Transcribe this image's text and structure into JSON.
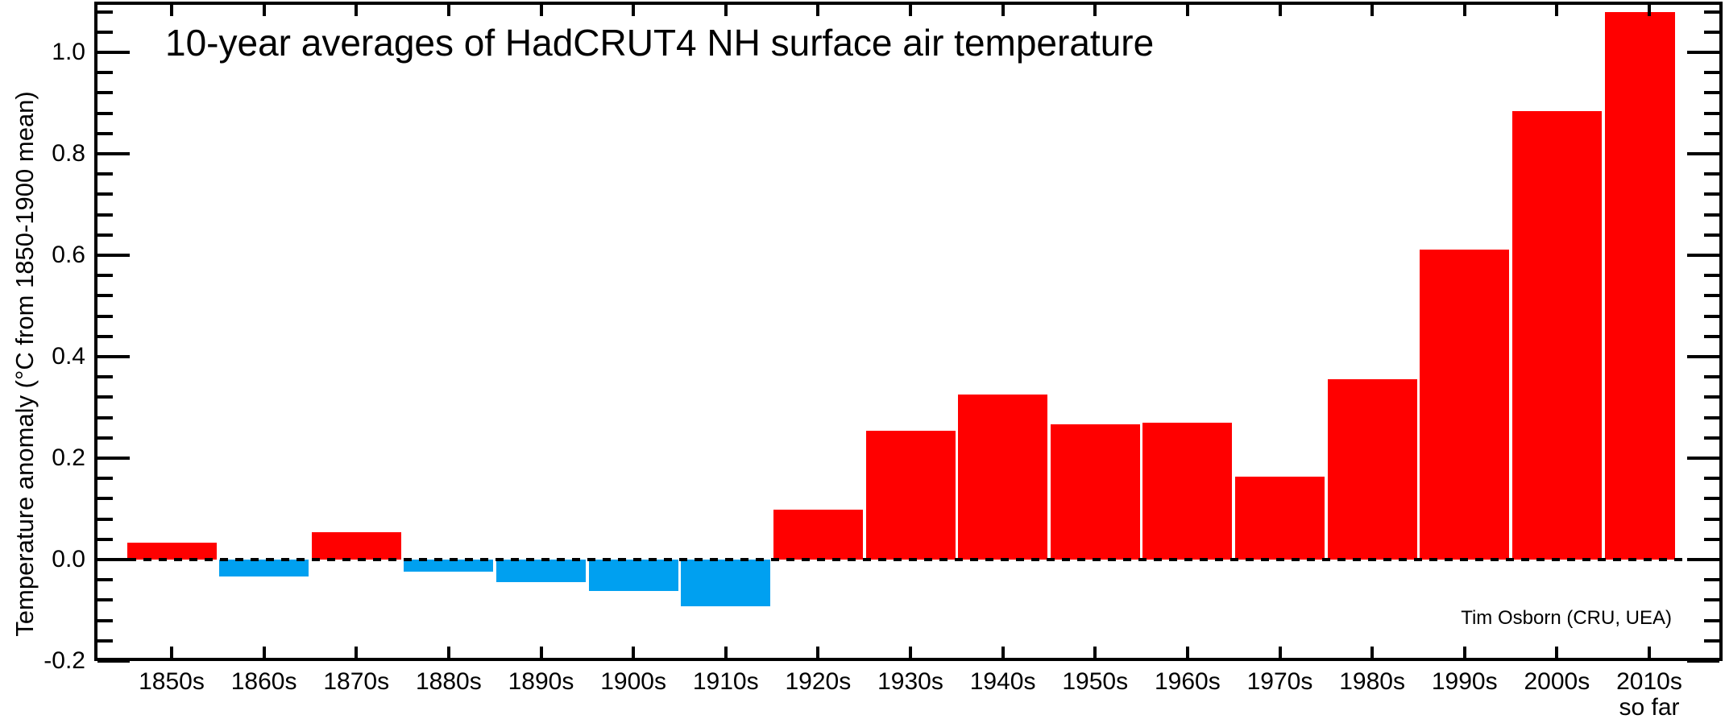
{
  "chart_data": {
    "type": "bar",
    "title": "10-year averages of HadCRUT4 NH surface air temperature",
    "ylabel": "Temperature anomaly (°C from 1850-1900 mean)",
    "xlabel": "",
    "attribution": "Tim Osborn (CRU, UEA)",
    "categories": [
      "1850s",
      "1860s",
      "1870s",
      "1880s",
      "1890s",
      "1900s",
      "1910s",
      "1920s",
      "1930s",
      "1940s",
      "1950s",
      "1960s",
      "1970s",
      "1980s",
      "1990s",
      "2000s",
      "2010s"
    ],
    "last_category_note": "so far",
    "values": [
      0.033,
      -0.033,
      0.054,
      -0.024,
      -0.044,
      -0.062,
      -0.092,
      0.098,
      0.254,
      0.325,
      0.267,
      0.27,
      0.163,
      0.356,
      0.611,
      0.884,
      1.079
    ],
    "ylim": [
      -0.2,
      1.1
    ],
    "ytick_major_interval": 0.2,
    "ytick_minor_interval": 0.04,
    "ytick_labels": [
      "-0.2",
      "0.0",
      "0.2",
      "0.4",
      "0.6",
      "0.8",
      "1.0"
    ],
    "ytick_values": [
      -0.2,
      0.0,
      0.2,
      0.4,
      0.6,
      0.8,
      1.0
    ],
    "zero_line_style": "dashed",
    "grid": "off",
    "legend": "none",
    "colors": {
      "positive_bar": "#ff0000",
      "negative_bar": "#00a0f0",
      "axis": "#000000",
      "text": "#000000",
      "background": "#ffffff"
    }
  }
}
